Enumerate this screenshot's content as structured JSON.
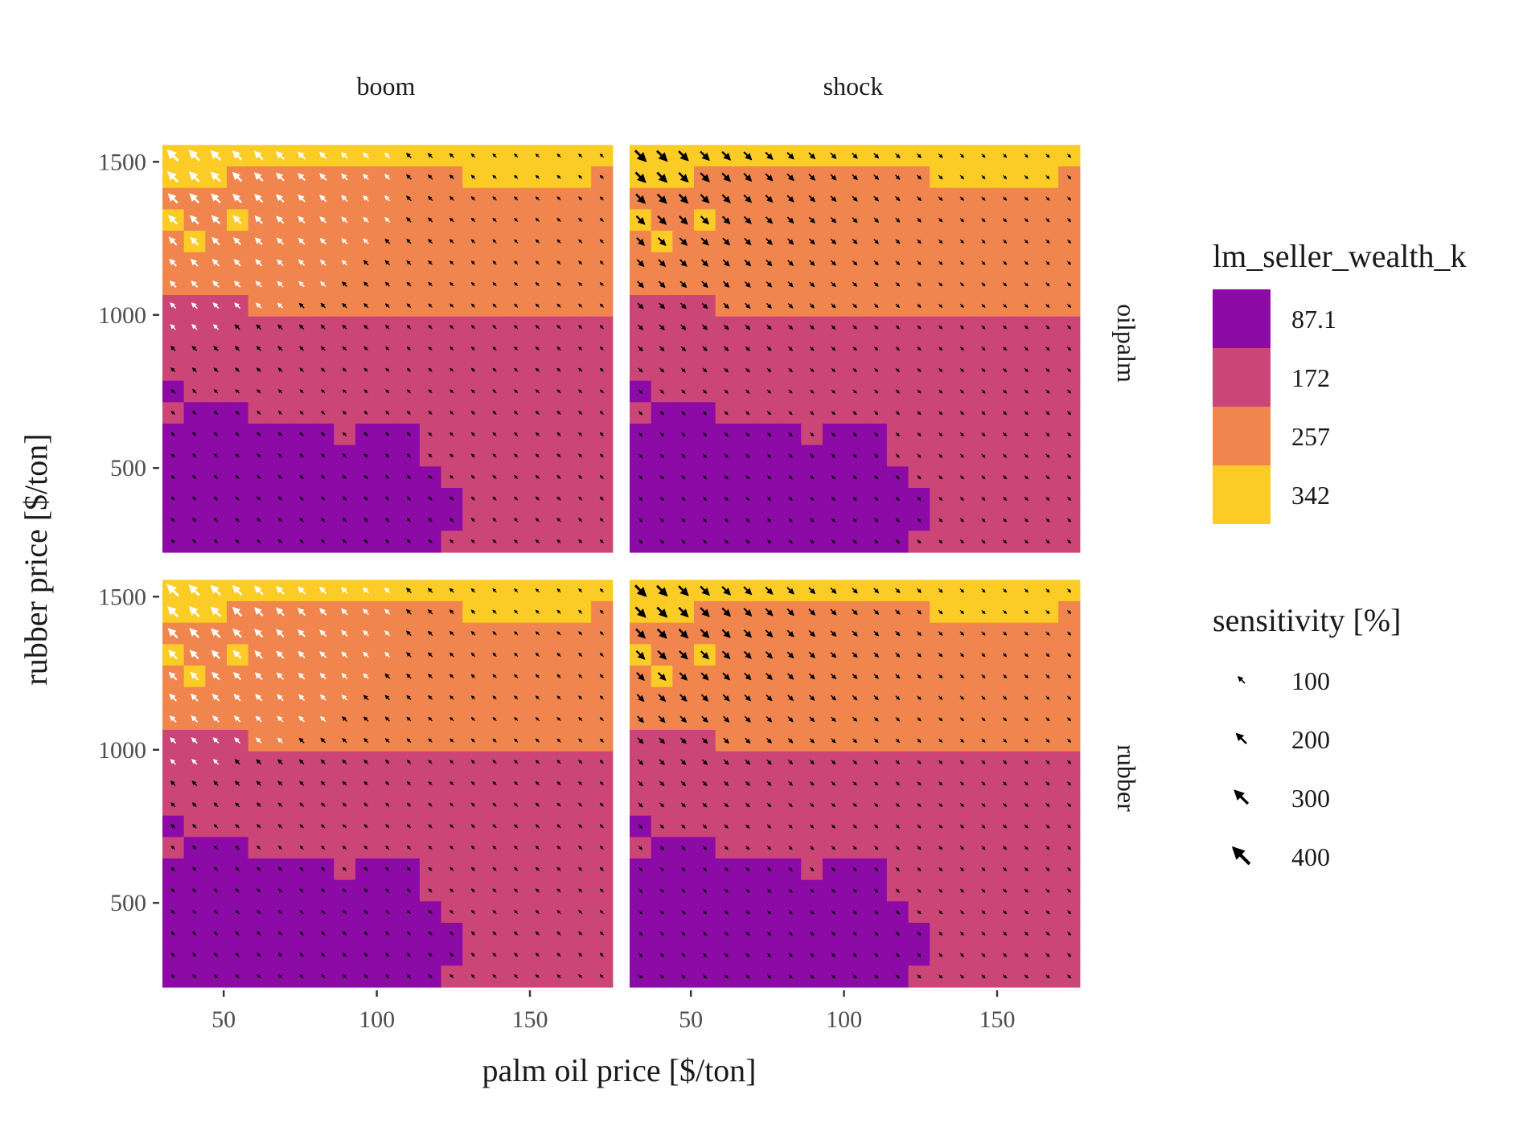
{
  "chart_data": {
    "type": "heatmap",
    "faceted": true,
    "facet_columns": [
      "boom",
      "shock"
    ],
    "facet_rows": [
      "oilpalm",
      "rubber"
    ],
    "xlabel": "palm oil price [$/ton]",
    "ylabel": "rubber price [$/ton]",
    "x_ticks": [
      50,
      100,
      150
    ],
    "y_ticks": [
      500,
      1000,
      1500
    ],
    "xlim": [
      30,
      176
    ],
    "ylim": [
      225,
      1590
    ],
    "grid": {
      "x_start": 33.5,
      "x_step": 7,
      "nx": 21,
      "y_start": 260,
      "y_step": 70,
      "ny": 19
    },
    "fill_legend": {
      "title": "lm_seller_wealth_k",
      "levels": [
        "87.1",
        "172",
        "257",
        "342"
      ],
      "colors": [
        "#8c0aa5",
        "#cc4577",
        "#f0854e",
        "#fbcc25"
      ]
    },
    "arrow_legend": {
      "title": "sensitivity [%]",
      "levels": [
        "100",
        "200",
        "300",
        "400"
      ],
      "values": [
        100,
        200,
        300,
        400
      ]
    },
    "fill_classes_by_row_top_to_bottom": [
      "333333333333333333333",
      "333222222222223333332",
      "222222222222222222222",
      "322322222222222222222",
      "232222222222222222222",
      "222222222222222222222",
      "222222222222222222222",
      "111122222222222222222",
      "111111111111111111111",
      "111111111111111111111",
      "111111111111111111111",
      "011111111111111111111",
      "100011111111111111111",
      "000000001000111111111",
      "000000000000111111111",
      "000000000000011111111",
      "000000000000001111111",
      "000000000000001111111",
      "000000000000011111111"
    ],
    "arrow_patterns": {
      "oilpalm_boom": "white-up-left, largest at low prices (up to ~400%), fading toward high prices",
      "oilpalm_shock": "black-down-right, largest at low prices",
      "rubber_boom": "white-up-left, largest at low prices",
      "rubber_shock": "black-down-right, largest at low prices"
    }
  }
}
